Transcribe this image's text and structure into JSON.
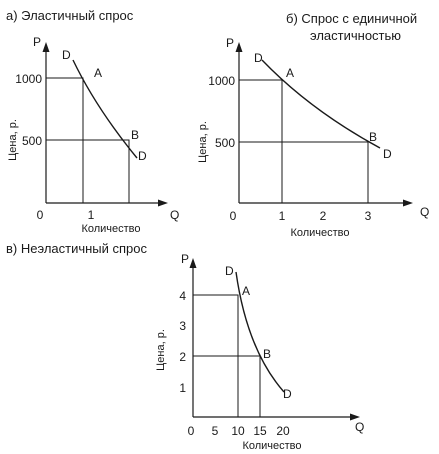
{
  "colors": {
    "ink": "#1a1a1a",
    "background": "#ffffff"
  },
  "panels": {
    "a": {
      "title": "а) Эластичный спрос",
      "y_axis_letter": "P",
      "x_axis_letter": "Q",
      "y_label": "Цена, р.",
      "x_label": "Количество",
      "origin": "0",
      "y_ticks": [
        "1000",
        "500"
      ],
      "x_ticks": [
        "1"
      ],
      "point_labels": {
        "d_top": "D",
        "a": "A",
        "b": "B",
        "d_bottom": "D"
      }
    },
    "b": {
      "title_line1": "б) Спрос с единичной",
      "title_line2": "эластичностью",
      "y_axis_letter": "P",
      "x_axis_letter": "Q",
      "y_label": "Цена, р.",
      "x_label": "Количество",
      "origin": "0",
      "y_ticks": [
        "1000",
        "500"
      ],
      "x_ticks": [
        "1",
        "2",
        "3"
      ],
      "point_labels": {
        "d_top": "D",
        "a": "A",
        "b": "B",
        "d_bottom": "D"
      }
    },
    "c": {
      "title": "в) Неэластичный спрос",
      "y_axis_letter": "P",
      "x_axis_letter": "Q",
      "y_label": "Цена, р.",
      "x_label": "Количество",
      "origin": "0",
      "y_ticks": [
        "4",
        "3",
        "2",
        "1"
      ],
      "x_ticks": [
        "5",
        "10",
        "15",
        "20"
      ],
      "point_labels": {
        "d_top": "D",
        "a": "A",
        "b": "B",
        "d_bottom": "D"
      }
    }
  },
  "chart_data": [
    {
      "type": "line",
      "title": "а) Эластичный спрос",
      "xlabel": "Количество",
      "ylabel": "Цена, р.",
      "points": [
        {
          "label": "A",
          "x": 1,
          "y": 1000
        },
        {
          "label": "B",
          "y": 500
        }
      ]
    },
    {
      "type": "line",
      "title": "б) Спрос с единичной эластичностью",
      "xlabel": "Количество",
      "ylabel": "Цена, р.",
      "xlim": [
        0,
        3.5
      ],
      "points": [
        {
          "label": "A",
          "x": 1,
          "y": 1000
        },
        {
          "label": "B",
          "x": 3,
          "y": 500
        }
      ]
    },
    {
      "type": "line",
      "title": "в) Неэластичный спрос",
      "xlabel": "Количество",
      "ylabel": "Цена, р.",
      "xlim": [
        0,
        25
      ],
      "ylim": [
        0,
        5
      ],
      "points": [
        {
          "label": "A",
          "x": 10,
          "y": 4
        },
        {
          "label": "B",
          "x": 15,
          "y": 2
        }
      ]
    }
  ]
}
